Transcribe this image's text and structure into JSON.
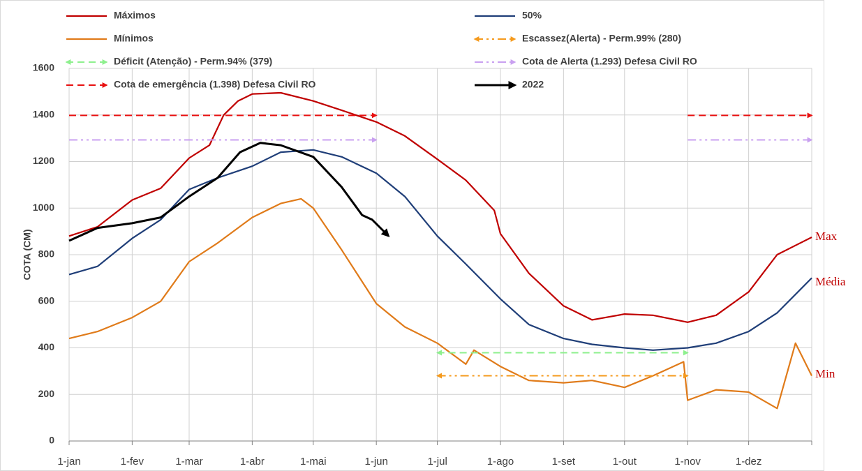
{
  "chart_data": {
    "type": "line",
    "y_label": "COTA (CM)",
    "annotations": [
      "Max",
      "Média",
      "Min"
    ],
    "xlim": [
      1,
      366
    ],
    "xticks": [
      {
        "value": 1,
        "label": "1-jan"
      },
      {
        "value": 32,
        "label": "1-fev"
      },
      {
        "value": 60,
        "label": "1-mar"
      },
      {
        "value": 91,
        "label": "1-abr"
      },
      {
        "value": 121,
        "label": "1-mai"
      },
      {
        "value": 152,
        "label": "1-jun"
      },
      {
        "value": 182,
        "label": "1-jul"
      },
      {
        "value": 213,
        "label": "1-ago"
      },
      {
        "value": 244,
        "label": "1-set"
      },
      {
        "value": 274,
        "label": "1-out"
      },
      {
        "value": 305,
        "label": "1-nov"
      },
      {
        "value": 335,
        "label": "1-dez"
      },
      {
        "value": 366,
        "label": ""
      }
    ],
    "ylim": [
      0,
      1600
    ],
    "yticks": [
      0,
      200,
      400,
      600,
      800,
      1000,
      1200,
      1400,
      1600
    ],
    "grid": true,
    "series": [
      {
        "name": "Máximos",
        "color": "#c00000",
        "style": "solid",
        "arrow": "none",
        "x": [
          1,
          15,
          32,
          46,
          60,
          70,
          77,
          84,
          91,
          105,
          121,
          135,
          152,
          166,
          182,
          196,
          210,
          213,
          227,
          244,
          258,
          274,
          288,
          305,
          319,
          335,
          349,
          366
        ],
        "values": [
          880,
          920,
          1035,
          1085,
          1215,
          1270,
          1400,
          1460,
          1490,
          1495,
          1460,
          1420,
          1370,
          1310,
          1210,
          1120,
          990,
          890,
          720,
          580,
          520,
          545,
          540,
          510,
          540,
          640,
          800,
          875
        ]
      },
      {
        "name": "50%",
        "color": "#1f3e78",
        "style": "solid",
        "arrow": "none",
        "x": [
          1,
          15,
          32,
          46,
          60,
          74,
          91,
          105,
          121,
          135,
          152,
          166,
          182,
          196,
          213,
          227,
          244,
          258,
          274,
          288,
          305,
          319,
          335,
          349,
          366
        ],
        "values": [
          715,
          750,
          870,
          950,
          1080,
          1130,
          1180,
          1240,
          1250,
          1220,
          1150,
          1050,
          880,
          760,
          610,
          500,
          440,
          415,
          400,
          390,
          400,
          420,
          470,
          550,
          700
        ]
      },
      {
        "name": "Mínimos",
        "color": "#e07b1a",
        "style": "solid",
        "arrow": "none",
        "x": [
          1,
          15,
          32,
          46,
          60,
          74,
          91,
          105,
          115,
          121,
          135,
          152,
          166,
          182,
          196,
          200,
          213,
          227,
          244,
          258,
          274,
          288,
          303,
          305,
          319,
          335,
          349,
          358,
          366
        ],
        "values": [
          440,
          470,
          530,
          600,
          770,
          850,
          960,
          1020,
          1040,
          1000,
          820,
          590,
          490,
          420,
          330,
          390,
          320,
          260,
          250,
          260,
          230,
          280,
          340,
          175,
          220,
          210,
          140,
          420,
          280
        ]
      },
      {
        "name": "Escassez(Alerta) - Perm.99% (280)",
        "color": "#f59a1d",
        "style": "dashdot",
        "arrow": "both",
        "x": [
          182,
          305
        ],
        "values": [
          280,
          280
        ]
      },
      {
        "name": "Déficit (Atenção) - Perm.94% (379)",
        "color": "#8ef08e",
        "style": "dashed",
        "arrow": "both",
        "x": [
          182,
          305
        ],
        "values": [
          379,
          379
        ]
      },
      {
        "name": "Cota de Alerta  (1.293) Defesa Civil RO",
        "color": "#c9a0f0",
        "style": "dashdot",
        "arrow": "end",
        "x": [
          1,
          152,
          228,
          305,
          366
        ],
        "values": [
          1293,
          1293,
          null,
          1293,
          1293
        ]
      },
      {
        "name": "Cota de emergência (1.398) Defesa Civil RO",
        "color": "#e81010",
        "style": "dashed",
        "arrow": "end",
        "x": [
          1,
          152,
          228,
          305,
          366
        ],
        "values": [
          1398,
          1398,
          null,
          1398,
          1398
        ]
      },
      {
        "name": "2022",
        "color": "#000000",
        "style": "solid",
        "arrow": "end",
        "x": [
          1,
          15,
          32,
          46,
          60,
          74,
          85,
          95,
          105,
          121,
          135,
          145,
          150,
          158
        ],
        "values": [
          860,
          915,
          935,
          960,
          1050,
          1130,
          1240,
          1280,
          1270,
          1220,
          1090,
          970,
          950,
          880
        ]
      }
    ]
  }
}
